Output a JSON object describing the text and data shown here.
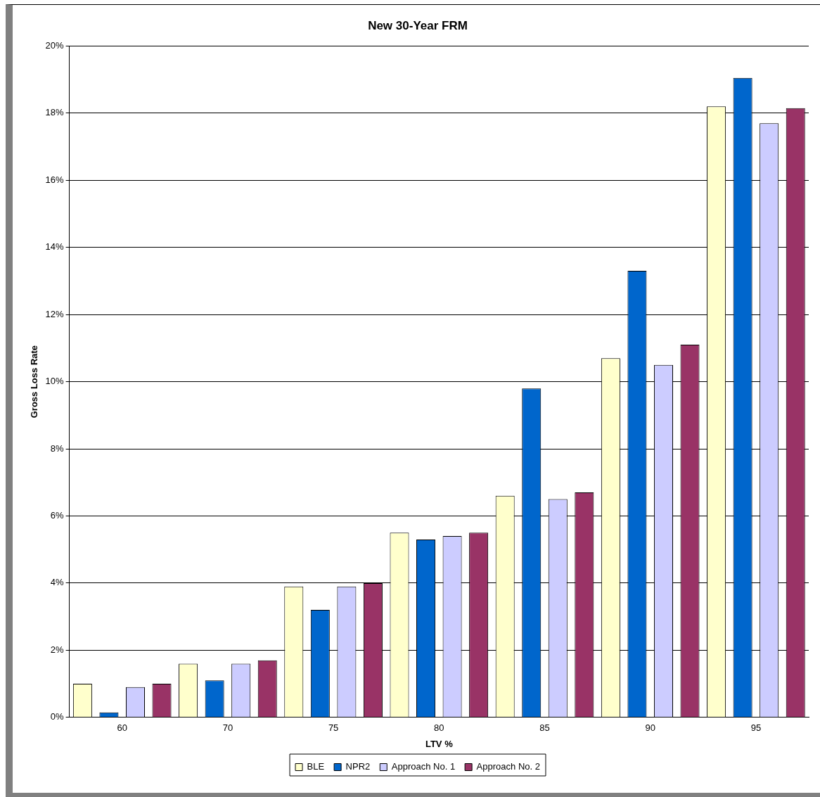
{
  "chart_data": {
    "type": "bar",
    "title": "New 30-Year FRM",
    "xlabel": "LTV %",
    "ylabel": "Gross Loss Rate",
    "categories": [
      "60",
      "70",
      "75",
      "80",
      "85",
      "90",
      "95"
    ],
    "series": [
      {
        "name": "BLE",
        "color": "#ffffcc",
        "values": [
          1.0,
          1.6,
          3.9,
          5.5,
          6.6,
          10.7,
          18.2
        ]
      },
      {
        "name": "NPR2",
        "color": "#0066cc",
        "values": [
          0.15,
          1.1,
          3.2,
          5.3,
          9.8,
          13.3,
          19.05
        ]
      },
      {
        "name": "Approach No. 1",
        "color": "#ccccff",
        "values": [
          0.9,
          1.6,
          3.9,
          5.4,
          6.5,
          10.5,
          17.7
        ]
      },
      {
        "name": "Approach No. 2",
        "color": "#993366",
        "values": [
          1.0,
          1.7,
          4.0,
          5.5,
          6.7,
          11.1,
          18.15
        ]
      }
    ],
    "ylim": [
      0,
      20
    ],
    "yticks": [
      {
        "value": 0,
        "label": "0%"
      },
      {
        "value": 2,
        "label": "2%"
      },
      {
        "value": 4,
        "label": "4%"
      },
      {
        "value": 6,
        "label": "6%"
      },
      {
        "value": 8,
        "label": "8%"
      },
      {
        "value": 10,
        "label": "10%"
      },
      {
        "value": 12,
        "label": "12%"
      },
      {
        "value": 14,
        "label": "14%"
      },
      {
        "value": 16,
        "label": "16%"
      },
      {
        "value": 18,
        "label": "18%"
      },
      {
        "value": 20,
        "label": "20%"
      }
    ],
    "grid": "y",
    "legend": "bottom"
  }
}
